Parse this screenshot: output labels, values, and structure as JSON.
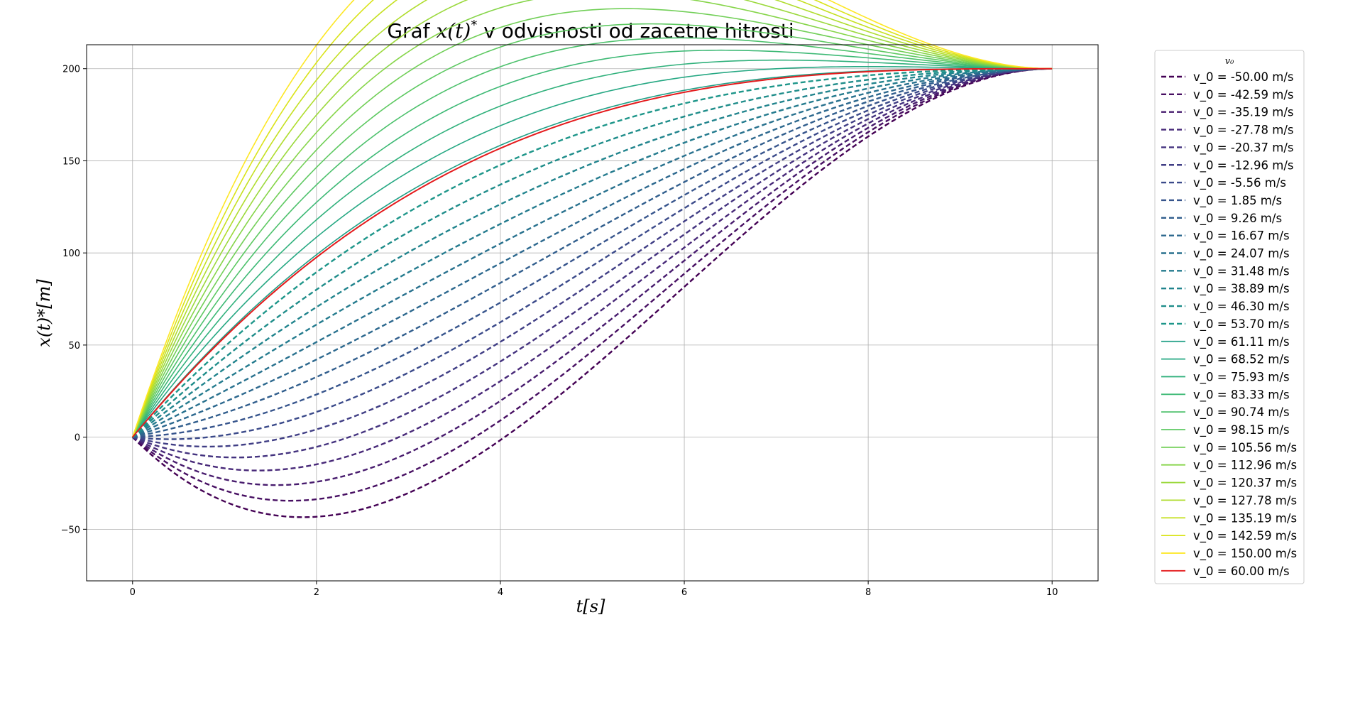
{
  "chart_data": {
    "type": "line",
    "title_parts": [
      "Graf ",
      "x(t)",
      "*",
      " v odvisnosti od zacetne hitrosti"
    ],
    "xlabel": "t[s]",
    "ylabel": "x(t)*[m]",
    "xlim": [
      -0.5,
      10.5
    ],
    "ylim": [
      -78,
      213
    ],
    "xticks": [
      0,
      2,
      4,
      6,
      8,
      10
    ],
    "yticks": [
      -50,
      0,
      50,
      100,
      150,
      200
    ],
    "ytick_labels": [
      "−50",
      "0",
      "50",
      "100",
      "150",
      "200"
    ],
    "grid": true,
    "legend": {
      "title": "v₀",
      "placement": "outside-right"
    },
    "model": {
      "x_start": 0,
      "x_end": 200,
      "t_end": 10,
      "v_end": 0
    },
    "highlight_color": "#e41a1c",
    "series": [
      {
        "name": "v_0 = -50.00 m/s",
        "v0": -50.0,
        "color": "#440154",
        "dashed": true
      },
      {
        "name": "v_0 = -42.59 m/s",
        "v0": -42.59,
        "color": "#470f62",
        "dashed": true
      },
      {
        "name": "v_0 = -35.19 m/s",
        "v0": -35.19,
        "color": "#481c6e",
        "dashed": true
      },
      {
        "name": "v_0 = -27.78 m/s",
        "v0": -27.78,
        "color": "#472878",
        "dashed": true
      },
      {
        "name": "v_0 = -20.37 m/s",
        "v0": -20.37,
        "color": "#44337f",
        "dashed": true
      },
      {
        "name": "v_0 = -12.96 m/s",
        "v0": -12.96,
        "color": "#403e85",
        "dashed": true
      },
      {
        "name": "v_0 = -5.56 m/s",
        "v0": -5.56,
        "color": "#3b4a8a",
        "dashed": true
      },
      {
        "name": "v_0 = 1.85 m/s",
        "v0": 1.85,
        "color": "#36548c",
        "dashed": true
      },
      {
        "name": "v_0 = 9.26 m/s",
        "v0": 9.26,
        "color": "#315e8d",
        "dashed": true
      },
      {
        "name": "v_0 = 16.67 m/s",
        "v0": 16.67,
        "color": "#2c688e",
        "dashed": true
      },
      {
        "name": "v_0 = 24.07 m/s",
        "v0": 24.07,
        "color": "#28718e",
        "dashed": true
      },
      {
        "name": "v_0 = 31.48 m/s",
        "v0": 31.48,
        "color": "#247b8e",
        "dashed": true
      },
      {
        "name": "v_0 = 38.89 m/s",
        "v0": 38.89,
        "color": "#21848d",
        "dashed": true
      },
      {
        "name": "v_0 = 46.30 m/s",
        "v0": 46.3,
        "color": "#1f8d8a",
        "dashed": true
      },
      {
        "name": "v_0 = 53.70 m/s",
        "v0": 53.7,
        "color": "#1e968a",
        "dashed": true
      },
      {
        "name": "v_0 = 61.11 m/s",
        "v0": 61.11,
        "color": "#209f86",
        "dashed": false
      },
      {
        "name": "v_0 = 68.52 m/s",
        "v0": 68.52,
        "color": "#26a883",
        "dashed": false
      },
      {
        "name": "v_0 = 75.93 m/s",
        "v0": 75.93,
        "color": "#31b17c",
        "dashed": false
      },
      {
        "name": "v_0 = 83.33 m/s",
        "v0": 83.33,
        "color": "#3db975",
        "dashed": false
      },
      {
        "name": "v_0 = 90.74 m/s",
        "v0": 90.74,
        "color": "#4dc16c",
        "dashed": false
      },
      {
        "name": "v_0 = 98.15 m/s",
        "v0": 98.15,
        "color": "#5ec962",
        "dashed": false
      },
      {
        "name": "v_0 = 105.56 m/s",
        "v0": 105.56,
        "color": "#71cf57",
        "dashed": false
      },
      {
        "name": "v_0 = 112.96 m/s",
        "v0": 112.96,
        "color": "#86d549",
        "dashed": false
      },
      {
        "name": "v_0 = 120.37 m/s",
        "v0": 120.37,
        "color": "#9bd93c",
        "dashed": false
      },
      {
        "name": "v_0 = 127.78 m/s",
        "v0": 127.78,
        "color": "#b0dd2f",
        "dashed": false
      },
      {
        "name": "v_0 = 135.19 m/s",
        "v0": 135.19,
        "color": "#c5e021",
        "dashed": false
      },
      {
        "name": "v_0 = 142.59 m/s",
        "v0": 142.59,
        "color": "#dae319",
        "dashed": false
      },
      {
        "name": "v_0 = 150.00 m/s",
        "v0": 150.0,
        "color": "#fde725",
        "dashed": false
      },
      {
        "name": "v_0 = 60.00 m/s",
        "v0": 60.0,
        "color": "#e41a1c",
        "dashed": false,
        "highlight": true
      }
    ]
  }
}
